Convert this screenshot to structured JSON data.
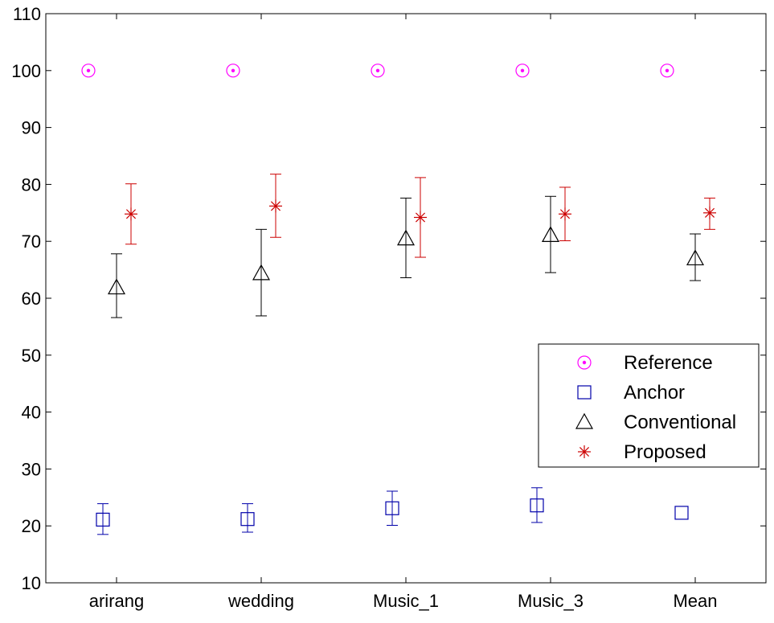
{
  "chart_data": {
    "type": "scatter",
    "categories": [
      "arirang",
      "wedding",
      "Music_1",
      "Music_3",
      "Mean"
    ],
    "ylim": [
      10,
      110
    ],
    "yticks": [
      10,
      20,
      30,
      40,
      50,
      60,
      70,
      80,
      90,
      100,
      110
    ],
    "grid": false,
    "legend_position": "right",
    "series": [
      {
        "name": "Reference",
        "marker": "circle",
        "color": "#ff00ff",
        "values": [
          100,
          100,
          100,
          100,
          100
        ],
        "err_low": [
          0,
          0,
          0,
          0,
          0
        ],
        "err_high": [
          0,
          0,
          0,
          0,
          0
        ]
      },
      {
        "name": "Anchor",
        "marker": "square",
        "color": "#0000aa",
        "values": [
          21.1,
          21.2,
          23.1,
          23.6,
          22.3
        ],
        "err_low": [
          18.5,
          18.9,
          20.1,
          20.6,
          22.3
        ],
        "err_high": [
          23.9,
          23.9,
          26.1,
          26.7,
          22.3
        ]
      },
      {
        "name": "Conventional",
        "marker": "triangle",
        "color": "#000000",
        "values": [
          61.9,
          64.4,
          70.5,
          71.1,
          67.0
        ],
        "err_low": [
          56.6,
          56.9,
          63.6,
          64.5,
          63.1
        ],
        "err_high": [
          67.8,
          72.1,
          77.6,
          77.9,
          71.3
        ]
      },
      {
        "name": "Proposed",
        "marker": "star",
        "color": "#cc0000",
        "values": [
          74.8,
          76.2,
          74.2,
          74.8,
          75.0
        ],
        "err_low": [
          69.5,
          70.7,
          67.2,
          70.1,
          72.1
        ],
        "err_high": [
          80.1,
          81.8,
          81.2,
          79.5,
          77.6
        ]
      }
    ]
  }
}
